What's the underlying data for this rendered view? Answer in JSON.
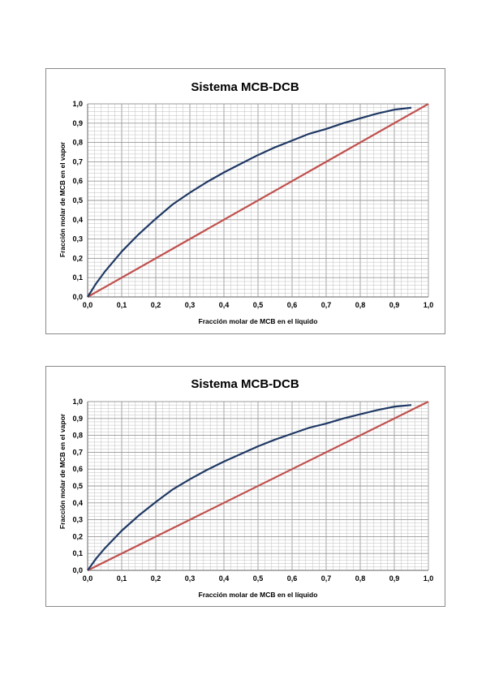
{
  "colors": {
    "curve": "#1f3864",
    "diagonal": "#c0504d",
    "grid": "#bfbfbf",
    "frame": "#8a8a8a"
  },
  "chart_data": [
    {
      "type": "line",
      "title": "Sistema MCB-DCB",
      "xlabel": "Fracción molar de MCB en el líquido",
      "ylabel": "Fracción molar de MCB en el vapor",
      "xlim": [
        0,
        1
      ],
      "ylim": [
        0,
        1
      ],
      "xticks": [
        "0,0",
        "0,1",
        "0,2",
        "0,3",
        "0,4",
        "0,5",
        "0,6",
        "0,7",
        "0,8",
        "0,9",
        "1,0"
      ],
      "yticks": [
        "0,0",
        "0,1",
        "0,2",
        "0,3",
        "0,4",
        "0,5",
        "0,6",
        "0,7",
        "0,8",
        "0,9",
        "1,0"
      ],
      "grid": true,
      "series": [
        {
          "x": [
            0,
            0.025,
            0.05,
            0.1,
            0.15,
            0.2,
            0.25,
            0.3,
            0.35,
            0.4,
            0.45,
            0.5,
            0.55,
            0.6,
            0.65,
            0.7,
            0.75,
            0.8,
            0.85,
            0.9,
            0.95
          ],
          "y": [
            0,
            0.07,
            0.13,
            0.235,
            0.325,
            0.405,
            0.48,
            0.54,
            0.595,
            0.645,
            0.69,
            0.735,
            0.775,
            0.81,
            0.845,
            0.87,
            0.9,
            0.925,
            0.95,
            0.97,
            0.98
          ]
        },
        {
          "x": [
            0,
            1
          ],
          "y": [
            0,
            1
          ]
        }
      ]
    },
    {
      "type": "line",
      "title": "Sistema MCB-DCB",
      "xlabel": "Fracción molar de MCB en el líquido",
      "ylabel": "Fracción molar de MCB en el vapor",
      "xlim": [
        0,
        1
      ],
      "ylim": [
        0,
        1
      ],
      "xticks": [
        "0,0",
        "0,1",
        "0,2",
        "0,3",
        "0,4",
        "0,5",
        "0,6",
        "0,7",
        "0,8",
        "0,9",
        "1,0"
      ],
      "yticks": [
        "0,0",
        "0,1",
        "0,2",
        "0,3",
        "0,4",
        "0,5",
        "0,6",
        "0,7",
        "0,8",
        "0,9",
        "1,0"
      ],
      "grid": true,
      "series": [
        {
          "x": [
            0,
            0.025,
            0.05,
            0.1,
            0.15,
            0.2,
            0.25,
            0.3,
            0.35,
            0.4,
            0.45,
            0.5,
            0.55,
            0.6,
            0.65,
            0.7,
            0.75,
            0.8,
            0.85,
            0.9,
            0.95
          ],
          "y": [
            0,
            0.07,
            0.13,
            0.235,
            0.325,
            0.405,
            0.48,
            0.54,
            0.595,
            0.645,
            0.69,
            0.735,
            0.775,
            0.81,
            0.845,
            0.87,
            0.9,
            0.925,
            0.95,
            0.97,
            0.98
          ]
        },
        {
          "x": [
            0,
            1
          ],
          "y": [
            0,
            1
          ]
        }
      ]
    }
  ]
}
